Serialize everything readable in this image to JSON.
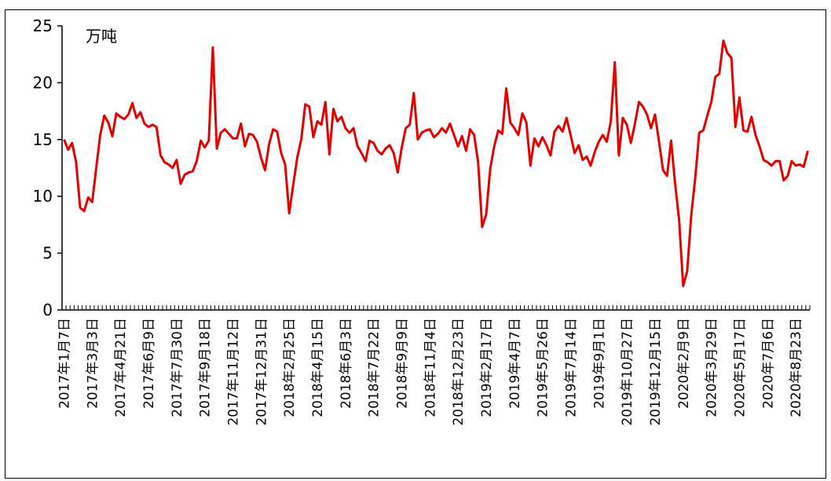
{
  "chart_data": {
    "type": "line",
    "unit_label": "万吨",
    "ylim": [
      0,
      25
    ],
    "y_ticks": [
      "0",
      "5",
      "10",
      "15",
      "20",
      "25"
    ],
    "x_tick_labels": [
      "2017年1月7日",
      "2017年3月3日",
      "2017年4月21日",
      "2017年6月9日",
      "2017年7月30日",
      "2017年9月18日",
      "2017年11月12日",
      "2017年12月31日",
      "2018年2月25日",
      "2018年4月15日",
      "2018年6月3日",
      "2018年7月22日",
      "2018年9月9日",
      "2018年11月4日",
      "2018年12月23日",
      "2019年2月17日",
      "2019年4月7日",
      "2019年5月26日",
      "2019年7月14日",
      "2019年9月1日",
      "2019年10月27日",
      "2019年12月15日",
      "2020年2月9日",
      "2020年3月29日",
      "2020年5月17日",
      "2020年7月6日",
      "2020年8月23日"
    ],
    "series_color": "#e00000",
    "grid": false,
    "values": [
      15.0,
      14.1,
      14.7,
      13.0,
      9.0,
      8.7,
      9.9,
      9.5,
      12.5,
      15.4,
      17.1,
      16.5,
      15.3,
      17.3,
      17.0,
      16.8,
      17.2,
      18.2,
      16.9,
      17.4,
      16.4,
      16.1,
      16.3,
      16.1,
      13.6,
      13.0,
      12.8,
      12.5,
      13.2,
      11.1,
      11.9,
      12.1,
      12.2,
      13.1,
      14.9,
      14.3,
      14.9,
      23.1,
      14.2,
      15.6,
      15.9,
      15.5,
      15.1,
      15.1,
      16.4,
      14.4,
      15.5,
      15.4,
      14.8,
      13.4,
      12.3,
      14.6,
      15.9,
      15.7,
      13.8,
      12.8,
      8.5,
      11.0,
      13.4,
      15.0,
      18.1,
      17.9,
      15.2,
      16.6,
      16.3,
      18.3,
      13.7,
      17.7,
      16.6,
      17.0,
      16.0,
      15.6,
      16.0,
      14.4,
      13.8,
      13.1,
      14.9,
      14.7,
      14.0,
      13.7,
      14.2,
      14.5,
      13.8,
      12.1,
      14.3,
      16.0,
      16.3,
      19.1,
      15.0,
      15.6,
      15.8,
      15.9,
      15.2,
      15.5,
      16.0,
      15.6,
      16.4,
      15.4,
      14.4,
      15.3,
      14.0,
      15.9,
      15.4,
      13.0,
      7.3,
      8.4,
      12.4,
      14.4,
      15.8,
      15.5,
      19.5,
      16.5,
      16.0,
      15.4,
      17.3,
      16.5,
      12.7,
      15.1,
      14.4,
      15.2,
      14.5,
      13.6,
      15.7,
      16.2,
      15.7,
      16.9,
      15.4,
      13.8,
      14.5,
      13.2,
      13.5,
      12.7,
      13.9,
      14.8,
      15.4,
      14.8,
      16.6,
      21.8,
      13.6,
      16.9,
      16.3,
      14.7,
      16.4,
      18.3,
      17.9,
      17.2,
      16.0,
      17.2,
      14.8,
      12.3,
      11.8,
      14.9,
      11.1,
      7.9,
      2.1,
      3.4,
      8.3,
      11.6,
      15.6,
      15.8,
      17.1,
      18.3,
      20.5,
      20.8,
      23.7,
      22.6,
      22.2,
      16.1,
      18.7,
      15.8,
      15.7,
      17.0,
      15.4,
      14.4,
      13.2,
      13.0,
      12.7,
      13.1,
      13.1,
      11.4,
      11.8,
      13.1,
      12.7,
      12.8,
      12.6,
      14.0
    ]
  }
}
